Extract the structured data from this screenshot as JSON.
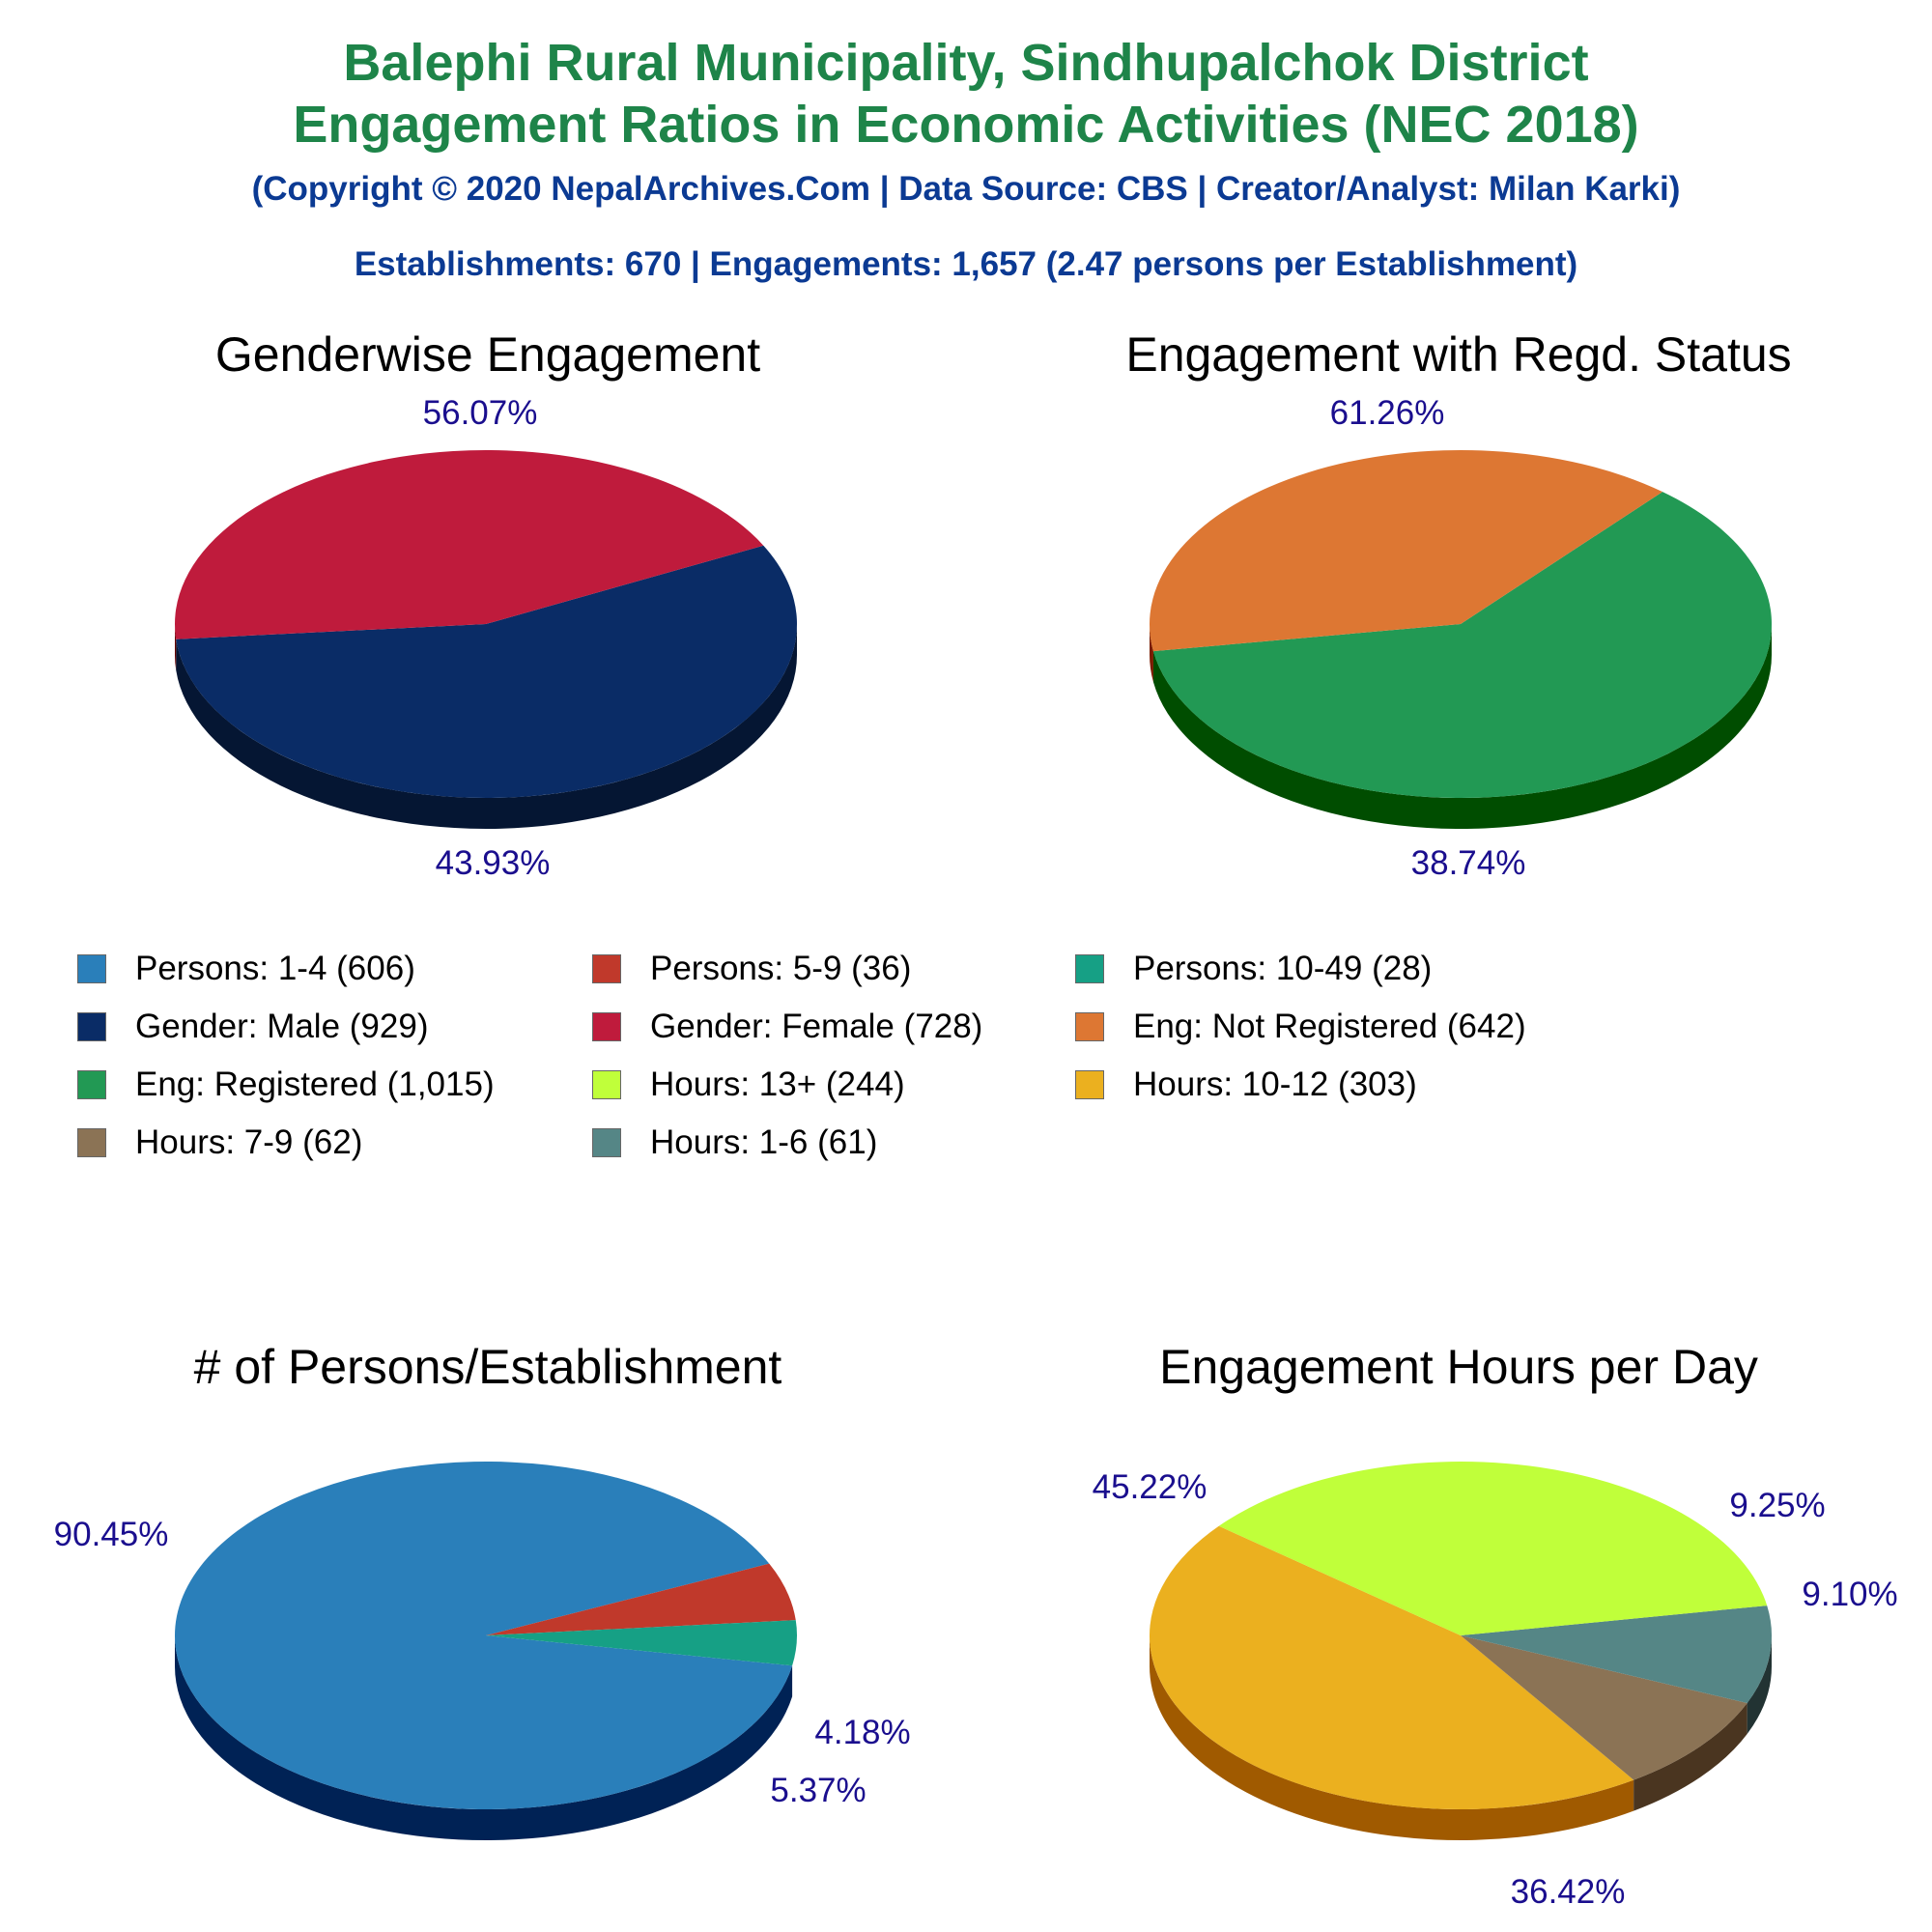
{
  "header": {
    "title_line1": "Balephi Rural Municipality, Sindhupalchok District",
    "title_line2": "Engagement Ratios in Economic Activities (NEC 2018)",
    "copyright": "(Copyright © 2020 NepalArchives.Com | Data Source: CBS | Creator/Analyst: Milan Karki)",
    "summary": "Establishments: 670 | Engagements: 1,657 (2.47 persons per Establishment)"
  },
  "legend": [
    {
      "label": "Persons: 1-4 (606)",
      "color": "#2a7fba"
    },
    {
      "label": "Persons: 5-9 (36)",
      "color": "#c0392b"
    },
    {
      "label": "Persons: 10-49 (28)",
      "color": "#16a085"
    },
    {
      "label": "Gender: Male (929)",
      "color": "#0a2c66"
    },
    {
      "label": "Gender: Female (728)",
      "color": "#bf1b3c"
    },
    {
      "label": "Eng: Not Registered (642)",
      "color": "#dd7733"
    },
    {
      "label": "Eng: Registered (1,015)",
      "color": "#229954"
    },
    {
      "label": "Hours: 13+ (244)",
      "color": "#c0ff3a"
    },
    {
      "label": "Hours: 10-12 (303)",
      "color": "#ebb01f"
    },
    {
      "label": "Hours: 7-9 (62)",
      "color": "#8b7355"
    },
    {
      "label": "Hours: 1-6 (61)",
      "color": "#558686"
    }
  ],
  "chart_data": [
    {
      "type": "pie",
      "title": "Genderwise Engagement",
      "slices": [
        {
          "name": "Gender: Male",
          "value": 929,
          "percent": "56.07%",
          "color": "#0a2c66",
          "side": "#051633"
        },
        {
          "name": "Gender: Female",
          "value": 728,
          "percent": "43.93%",
          "color": "#bf1b3c",
          "side": "#660000"
        }
      ]
    },
    {
      "type": "pie",
      "title": "Engagement with Regd. Status",
      "slices": [
        {
          "name": "Eng: Registered",
          "value": 1015,
          "percent": "61.26%",
          "color": "#229954",
          "side": "#004d00"
        },
        {
          "name": "Eng: Not Registered",
          "value": 642,
          "percent": "38.74%",
          "color": "#dd7733",
          "side": "#7a1c00"
        }
      ]
    },
    {
      "type": "pie",
      "title": "# of Persons/Establishment",
      "slices": [
        {
          "name": "Persons: 1-4",
          "value": 606,
          "percent": "90.45%",
          "color": "#2a7fba",
          "side": "#002255"
        },
        {
          "name": "Persons: 5-9",
          "value": 36,
          "percent": "5.37%",
          "color": "#c0392b",
          "side": "#7a0000"
        },
        {
          "name": "Persons: 10-49",
          "value": 28,
          "percent": "4.18%",
          "color": "#16a085",
          "side": "#004d33"
        }
      ]
    },
    {
      "type": "pie",
      "title": "Engagement Hours per Day",
      "slices": [
        {
          "name": "Hours: 10-12",
          "value": 303,
          "percent": "45.22%",
          "color": "#ebb01f",
          "side": "#a05a00"
        },
        {
          "name": "Hours: 7-9",
          "value": 62,
          "percent": "9.25%",
          "color": "#8b7355",
          "side": "#4a3520"
        },
        {
          "name": "Hours: 1-6",
          "value": 61,
          "percent": "9.10%",
          "color": "#558686",
          "side": "#223333"
        },
        {
          "name": "Hours: 13+",
          "value": 244,
          "percent": "36.42%",
          "color": "#c0ff3a",
          "side": "#66a300"
        }
      ]
    }
  ]
}
